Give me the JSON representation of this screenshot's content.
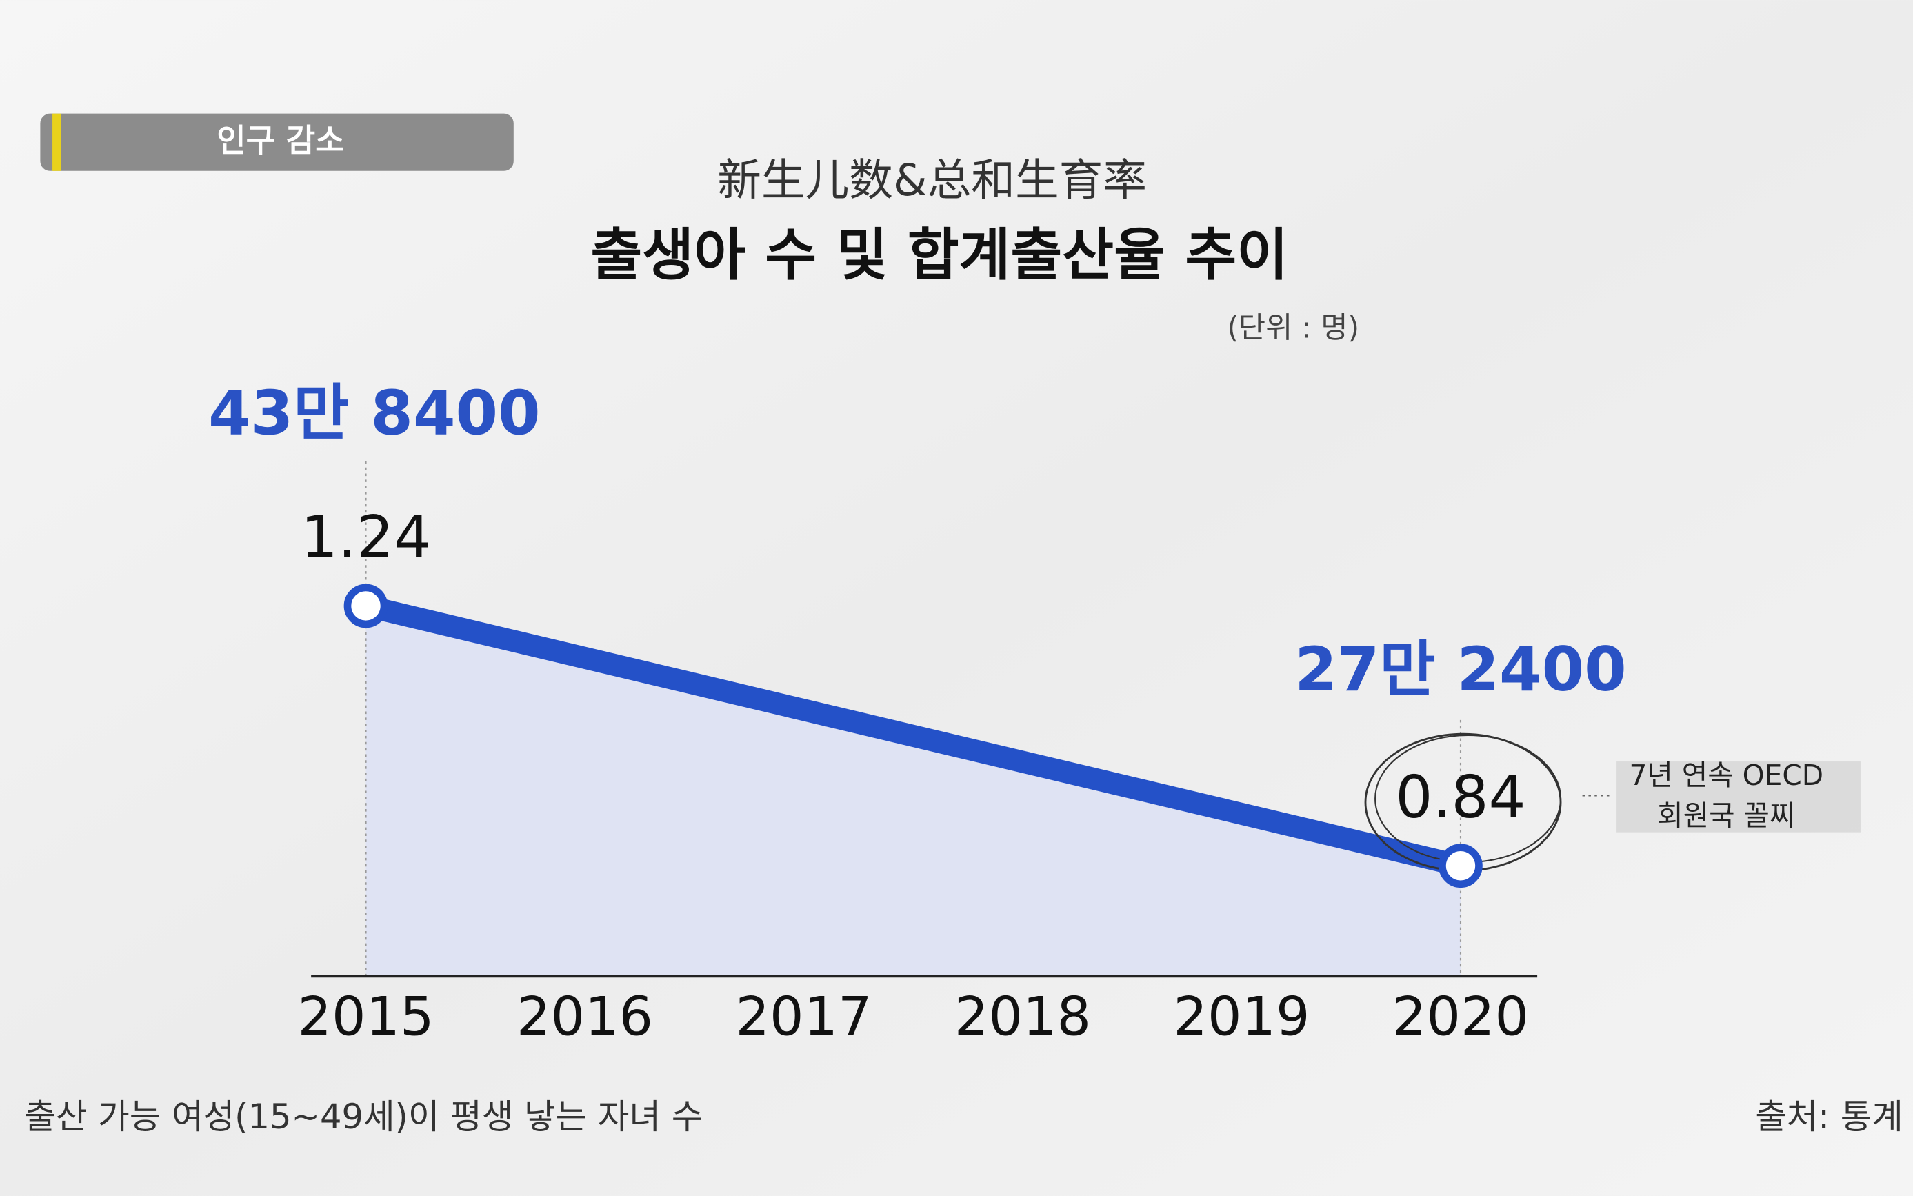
{
  "chart_data": {
    "type": "line",
    "tag": "인구 감소",
    "title": "新生儿数&总和生育率",
    "subtitle": "출생아 수 및 합계출산율 추이",
    "unit": "(단위 : 명)",
    "x": [
      2015,
      2020
    ],
    "xlim": [
      2014.75,
      2020.35
    ],
    "xticks": [
      2015,
      2016,
      2017,
      2018,
      2019,
      2020
    ],
    "ylim": [
      0.67,
      1.5
    ],
    "series": [
      {
        "color": "#2451c8",
        "area_color": "#dfe3f3",
        "values": [
          1.24,
          0.84
        ]
      }
    ],
    "births": {
      "color": "#2a52c4",
      "values": [
        438400,
        272400
      ],
      "value_labels": [
        "43만 8400",
        "27만 2400"
      ]
    },
    "annotation": [
      "7년 연속 OECD",
      "회원국 꼴찌"
    ],
    "footnote": "출산 가능 여성(15~49세)이 평생 낳는 자녀 수",
    "source": "출처: 통계"
  }
}
